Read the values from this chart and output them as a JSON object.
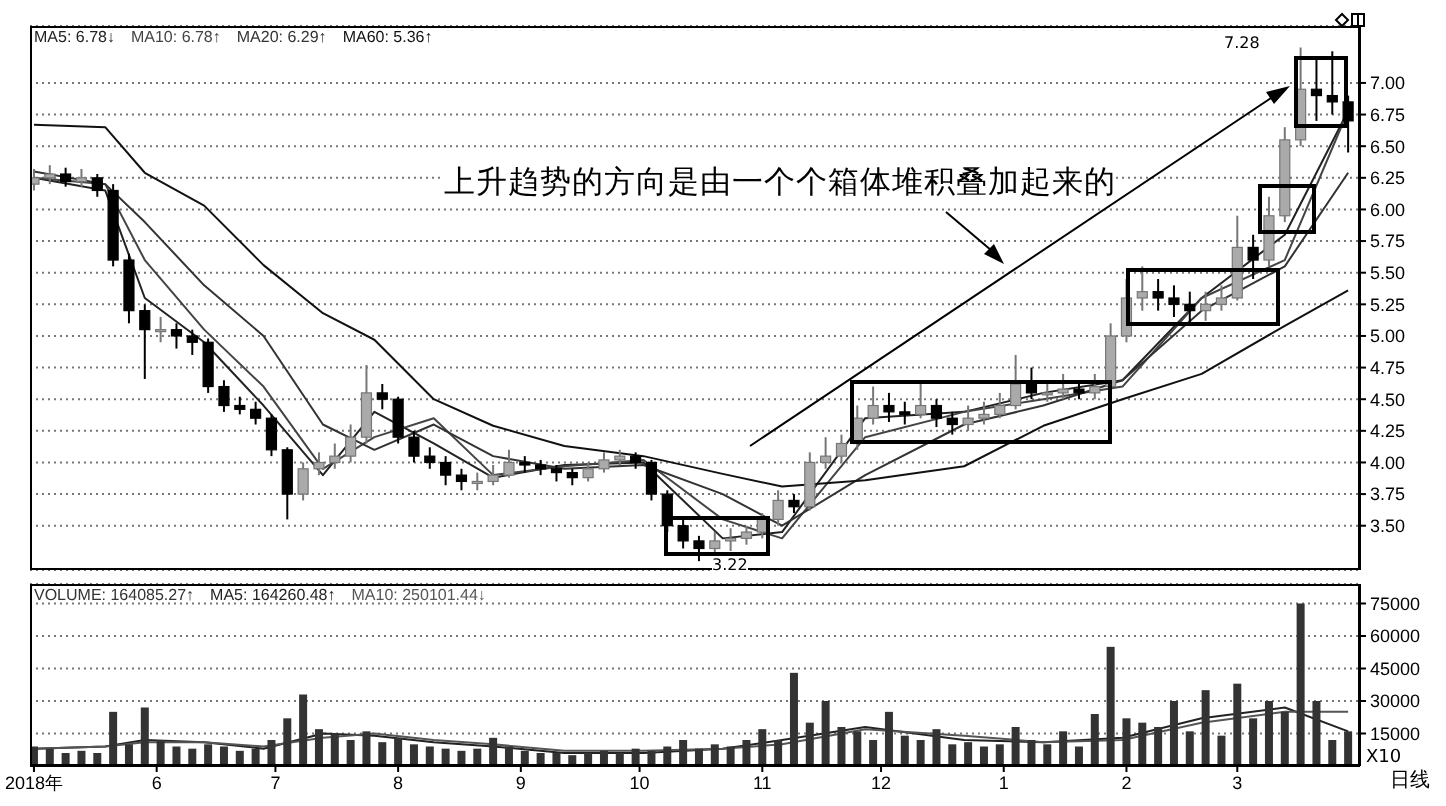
{
  "chart_data": [
    {
      "type": "candlestick",
      "legend": "top left",
      "grid": "y",
      "tick_labels": "y",
      "xlim": [
        "2018-04-30",
        "2019-04-01"
      ],
      "ylim": [
        3.15,
        7.45
      ],
      "yticks": [
        {
          "value": 3.5,
          "label": "3.50"
        },
        {
          "value": 3.75,
          "label": "3.75"
        },
        {
          "value": 4,
          "label": "4.00"
        },
        {
          "value": 4.25,
          "label": "4.25"
        },
        {
          "value": 4.5,
          "label": "4.50"
        },
        {
          "value": 4.75,
          "label": "4.75"
        },
        {
          "value": 5,
          "label": "5.00"
        },
        {
          "value": 5.25,
          "label": "5.25"
        },
        {
          "value": 5.5,
          "label": "5.50"
        },
        {
          "value": 5.75,
          "label": "5.75"
        },
        {
          "value": 6,
          "label": "6.00"
        },
        {
          "value": 6.25,
          "label": "6.25"
        },
        {
          "value": 6.5,
          "label": "6.50"
        },
        {
          "value": 6.75,
          "label": "6.75"
        },
        {
          "value": 7,
          "label": "7.00"
        }
      ],
      "x": [
        "2018-05-01",
        "2018-05-05",
        "2018-05-09",
        "2018-05-13",
        "2018-05-17",
        "2018-05-21",
        "2018-05-25",
        "2018-05-29",
        "2018-06-02",
        "2018-06-06",
        "2018-06-10",
        "2018-06-14",
        "2018-06-18",
        "2018-06-22",
        "2018-06-26",
        "2018-06-30",
        "2018-07-04",
        "2018-07-08",
        "2018-07-12",
        "2018-07-16",
        "2018-07-20",
        "2018-07-24",
        "2018-07-28",
        "2018-08-01",
        "2018-08-05",
        "2018-08-09",
        "2018-08-13",
        "2018-08-17",
        "2018-08-21",
        "2018-08-25",
        "2018-08-29",
        "2018-09-02",
        "2018-09-06",
        "2018-09-10",
        "2018-09-14",
        "2018-09-18",
        "2018-09-22",
        "2018-09-26",
        "2018-09-30",
        "2018-10-04",
        "2018-10-08",
        "2018-10-12",
        "2018-10-16",
        "2018-10-20",
        "2018-10-24",
        "2018-10-28",
        "2018-11-01",
        "2018-11-05",
        "2018-11-09",
        "2018-11-13",
        "2018-11-17",
        "2018-11-21",
        "2018-11-25",
        "2018-11-29",
        "2018-12-03",
        "2018-12-07",
        "2018-12-11",
        "2018-12-15",
        "2018-12-19",
        "2018-12-23",
        "2018-12-27",
        "2018-12-31",
        "2019-01-04",
        "2019-01-08",
        "2019-01-12",
        "2019-01-16",
        "2019-01-20",
        "2019-01-24",
        "2019-01-28",
        "2019-02-01",
        "2019-02-05",
        "2019-02-09",
        "2019-02-13",
        "2019-02-17",
        "2019-02-21",
        "2019-02-25",
        "2019-03-01",
        "2019-03-05",
        "2019-03-09",
        "2019-03-13",
        "2019-03-17",
        "2019-03-21",
        "2019-03-25",
        "2019-03-29"
      ],
      "ohlc": [
        [
          6.2,
          6.32,
          6.15,
          6.25
        ],
        [
          6.25,
          6.35,
          6.2,
          6.28
        ],
        [
          6.28,
          6.33,
          6.18,
          6.22
        ],
        [
          6.22,
          6.32,
          6.18,
          6.25
        ],
        [
          6.25,
          6.28,
          6.1,
          6.15
        ],
        [
          6.15,
          6.2,
          5.55,
          5.6
        ],
        [
          5.6,
          5.65,
          5.1,
          5.2
        ],
        [
          5.2,
          5.25,
          4.66,
          5.05
        ],
        [
          5.05,
          5.15,
          4.95,
          5.05
        ],
        [
          5.05,
          5.1,
          4.9,
          5.0
        ],
        [
          5.0,
          5.05,
          4.85,
          4.95
        ],
        [
          4.95,
          4.98,
          4.55,
          4.6
        ],
        [
          4.6,
          4.65,
          4.4,
          4.45
        ],
        [
          4.45,
          4.52,
          4.38,
          4.42
        ],
        [
          4.42,
          4.48,
          4.3,
          4.35
        ],
        [
          4.35,
          4.38,
          4.05,
          4.1
        ],
        [
          4.1,
          4.12,
          3.55,
          3.75
        ],
        [
          3.75,
          4.0,
          3.7,
          3.95
        ],
        [
          3.95,
          4.08,
          3.9,
          4.0
        ],
        [
          4.0,
          4.15,
          3.95,
          4.05
        ],
        [
          4.05,
          4.3,
          4.0,
          4.2
        ],
        [
          4.2,
          4.77,
          4.15,
          4.55
        ],
        [
          4.55,
          4.62,
          4.42,
          4.5
        ],
        [
          4.5,
          4.52,
          4.15,
          4.2
        ],
        [
          4.2,
          4.25,
          4.0,
          4.05
        ],
        [
          4.05,
          4.12,
          3.95,
          4.0
        ],
        [
          4.0,
          4.05,
          3.82,
          3.9
        ],
        [
          3.9,
          3.95,
          3.78,
          3.85
        ],
        [
          3.85,
          3.92,
          3.78,
          3.85
        ],
        [
          3.85,
          3.98,
          3.82,
          3.9
        ],
        [
          3.9,
          4.1,
          3.88,
          4.0
        ],
        [
          4.0,
          4.05,
          3.92,
          3.98
        ],
        [
          3.98,
          4.02,
          3.9,
          3.95
        ],
        [
          3.95,
          3.98,
          3.85,
          3.92
        ],
        [
          3.92,
          3.95,
          3.82,
          3.88
        ],
        [
          3.88,
          4.0,
          3.85,
          3.95
        ],
        [
          3.95,
          4.08,
          3.92,
          4.02
        ],
        [
          4.02,
          4.1,
          3.98,
          4.05
        ],
        [
          4.05,
          4.08,
          3.95,
          4.0
        ],
        [
          4.0,
          4.02,
          3.7,
          3.75
        ],
        [
          3.75,
          3.78,
          3.45,
          3.5
        ],
        [
          3.5,
          3.55,
          3.32,
          3.38
        ],
        [
          3.38,
          3.42,
          3.22,
          3.32
        ],
        [
          3.32,
          3.45,
          3.28,
          3.38
        ],
        [
          3.38,
          3.48,
          3.3,
          3.4
        ],
        [
          3.4,
          3.5,
          3.35,
          3.45
        ],
        [
          3.45,
          3.6,
          3.4,
          3.55
        ],
        [
          3.55,
          3.78,
          3.5,
          3.7
        ],
        [
          3.7,
          3.75,
          3.6,
          3.65
        ],
        [
          3.65,
          4.08,
          3.62,
          4.0
        ],
        [
          4.0,
          4.2,
          3.95,
          4.05
        ],
        [
          4.05,
          4.22,
          4.0,
          4.15
        ],
        [
          4.15,
          4.45,
          4.1,
          4.35
        ],
        [
          4.35,
          4.6,
          4.3,
          4.45
        ],
        [
          4.45,
          4.55,
          4.32,
          4.4
        ],
        [
          4.4,
          4.48,
          4.3,
          4.38
        ],
        [
          4.38,
          4.65,
          4.35,
          4.45
        ],
        [
          4.45,
          4.5,
          4.28,
          4.35
        ],
        [
          4.35,
          4.4,
          4.22,
          4.3
        ],
        [
          4.3,
          4.45,
          4.25,
          4.35
        ],
        [
          4.35,
          4.48,
          4.3,
          4.38
        ],
        [
          4.38,
          4.55,
          4.35,
          4.45
        ],
        [
          4.45,
          4.85,
          4.42,
          4.62
        ],
        [
          4.62,
          4.75,
          4.5,
          4.55
        ],
        [
          4.55,
          4.65,
          4.48,
          4.55
        ],
        [
          4.55,
          4.7,
          4.5,
          4.58
        ],
        [
          4.58,
          4.65,
          4.5,
          4.55
        ],
        [
          4.55,
          4.7,
          4.5,
          4.6
        ],
        [
          4.6,
          5.1,
          4.58,
          5.0
        ],
        [
          5.0,
          5.45,
          4.95,
          5.3
        ],
        [
          5.3,
          5.55,
          5.2,
          5.35
        ],
        [
          5.35,
          5.45,
          5.2,
          5.3
        ],
        [
          5.3,
          5.4,
          5.15,
          5.25
        ],
        [
          5.25,
          5.35,
          5.1,
          5.2
        ],
        [
          5.2,
          5.35,
          5.12,
          5.25
        ],
        [
          5.25,
          5.4,
          5.2,
          5.3
        ],
        [
          5.3,
          5.95,
          5.28,
          5.7
        ],
        [
          5.7,
          5.8,
          5.45,
          5.6
        ],
        [
          5.6,
          6.1,
          5.55,
          5.95
        ],
        [
          5.95,
          6.65,
          5.9,
          6.55
        ],
        [
          6.55,
          7.28,
          6.5,
          6.95
        ],
        [
          6.95,
          7.2,
          6.7,
          6.9
        ],
        [
          6.9,
          7.25,
          6.75,
          6.85
        ],
        [
          6.85,
          6.9,
          6.45,
          6.7
        ]
      ],
      "series": [
        {
          "name": "MA5: 6.78↓",
          "type": "line",
          "color": "#222222",
          "x": [
            "2018-05-01",
            "2018-05-19",
            "2018-05-29",
            "2018-06-13",
            "2018-06-28",
            "2018-07-13",
            "2018-07-26",
            "2018-08-10",
            "2018-08-25",
            "2018-09-12",
            "2018-10-02",
            "2018-10-22",
            "2018-11-06",
            "2018-11-27",
            "2018-12-22",
            "2019-01-11",
            "2019-01-31",
            "2019-02-20",
            "2019-03-13",
            "2019-03-29"
          ],
          "values": [
            6.25,
            6.15,
            5.3,
            4.95,
            4.45,
            3.9,
            4.4,
            4.15,
            3.88,
            3.98,
            4.0,
            3.4,
            3.45,
            4.35,
            4.4,
            4.55,
            4.65,
            5.3,
            5.8,
            6.78
          ]
        },
        {
          "name": "MA10: 6.78↑",
          "type": "line",
          "color": "#444444",
          "x": [
            "2018-05-01",
            "2018-05-19",
            "2018-05-29",
            "2018-06-13",
            "2018-06-28",
            "2018-07-13",
            "2018-07-26",
            "2018-08-10",
            "2018-08-25",
            "2018-09-12",
            "2018-10-02",
            "2018-10-22",
            "2018-11-06",
            "2018-11-27",
            "2018-12-22",
            "2019-01-11",
            "2019-01-31",
            "2019-02-20",
            "2019-03-13",
            "2019-03-29"
          ],
          "values": [
            6.25,
            6.2,
            5.6,
            5.05,
            4.6,
            3.95,
            4.2,
            4.35,
            3.9,
            3.97,
            4.02,
            3.55,
            3.4,
            4.2,
            4.4,
            4.5,
            4.6,
            5.3,
            5.6,
            6.78
          ]
        },
        {
          "name": "MA20: 6.29↑",
          "type": "line",
          "color": "#333333",
          "x": [
            "2018-05-01",
            "2018-05-19",
            "2018-05-29",
            "2018-06-13",
            "2018-06-28",
            "2018-07-13",
            "2018-07-26",
            "2018-08-10",
            "2018-08-25",
            "2018-09-12",
            "2018-10-02",
            "2018-10-22",
            "2018-11-06",
            "2018-11-27",
            "2018-12-22",
            "2019-01-11",
            "2019-01-31",
            "2019-02-20",
            "2019-03-13",
            "2019-03-29"
          ],
          "values": [
            6.3,
            6.2,
            5.9,
            5.4,
            5.0,
            4.3,
            4.1,
            4.3,
            4.05,
            3.95,
            3.98,
            3.75,
            3.5,
            3.9,
            4.3,
            4.45,
            4.65,
            5.2,
            5.55,
            6.29
          ]
        },
        {
          "name": "MA60: 5.36↑",
          "type": "line",
          "color": "#111111",
          "x": [
            "2018-05-01",
            "2018-05-19",
            "2018-05-29",
            "2018-06-13",
            "2018-06-28",
            "2018-07-13",
            "2018-07-26",
            "2018-08-10",
            "2018-08-25",
            "2018-09-12",
            "2018-10-02",
            "2018-10-22",
            "2018-11-06",
            "2018-11-27",
            "2018-12-22",
            "2019-01-11",
            "2019-01-31",
            "2019-02-20",
            "2019-03-13",
            "2019-03-29"
          ],
          "values": [
            6.67,
            6.65,
            6.29,
            6.03,
            5.56,
            5.18,
            4.97,
            4.5,
            4.29,
            4.13,
            4.05,
            3.91,
            3.81,
            3.86,
            3.97,
            4.29,
            4.5,
            4.7,
            5.08,
            5.36
          ]
        }
      ],
      "annotations": [
        "上升趋势的方向是由一个个箱体堆积叠加起来的",
        "7.28",
        "3.22"
      ]
    },
    {
      "type": "bar",
      "legend": "top left",
      "grid": "y",
      "xlim": [
        "2018-04-30",
        "2019-04-01"
      ],
      "ylim": [
        0,
        84000
      ],
      "yticks": [
        15000,
        30000,
        45000,
        60000,
        75000
      ],
      "xticks": [
        {
          "value": "2018-05-01",
          "label": "2018年"
        },
        {
          "value": "2018-06-01",
          "label": "6"
        },
        {
          "value": "2018-07-01",
          "label": "7"
        },
        {
          "value": "2018-08-01",
          "label": "8"
        },
        {
          "value": "2018-09-01",
          "label": "9"
        },
        {
          "value": "2018-10-01",
          "label": "10"
        },
        {
          "value": "2018-11-01",
          "label": "11"
        },
        {
          "value": "2018-12-01",
          "label": "12"
        },
        {
          "value": "2019-01-01",
          "label": "1"
        },
        {
          "value": "2019-02-01",
          "label": "2"
        },
        {
          "value": "2019-03-01",
          "label": "3"
        }
      ],
      "x": [
        "2018-05-01",
        "2018-05-05",
        "2018-05-09",
        "2018-05-13",
        "2018-05-17",
        "2018-05-21",
        "2018-05-25",
        "2018-05-29",
        "2018-06-02",
        "2018-06-06",
        "2018-06-10",
        "2018-06-14",
        "2018-06-18",
        "2018-06-22",
        "2018-06-26",
        "2018-06-30",
        "2018-07-04",
        "2018-07-08",
        "2018-07-12",
        "2018-07-16",
        "2018-07-20",
        "2018-07-24",
        "2018-07-28",
        "2018-08-01",
        "2018-08-05",
        "2018-08-09",
        "2018-08-13",
        "2018-08-17",
        "2018-08-21",
        "2018-08-25",
        "2018-08-29",
        "2018-09-02",
        "2018-09-06",
        "2018-09-10",
        "2018-09-14",
        "2018-09-18",
        "2018-09-22",
        "2018-09-26",
        "2018-09-30",
        "2018-10-04",
        "2018-10-08",
        "2018-10-12",
        "2018-10-16",
        "2018-10-20",
        "2018-10-24",
        "2018-10-28",
        "2018-11-01",
        "2018-11-05",
        "2018-11-09",
        "2018-11-13",
        "2018-11-17",
        "2018-11-21",
        "2018-11-25",
        "2018-11-29",
        "2018-12-03",
        "2018-12-07",
        "2018-12-11",
        "2018-12-15",
        "2018-12-19",
        "2018-12-23",
        "2018-12-27",
        "2018-12-31",
        "2019-01-04",
        "2019-01-08",
        "2019-01-12",
        "2019-01-16",
        "2019-01-20",
        "2019-01-24",
        "2019-01-28",
        "2019-02-01",
        "2019-02-05",
        "2019-02-09",
        "2019-02-13",
        "2019-02-17",
        "2019-02-21",
        "2019-02-25",
        "2019-03-01",
        "2019-03-05",
        "2019-03-09",
        "2019-03-13",
        "2019-03-17",
        "2019-03-21",
        "2019-03-25",
        "2019-03-29"
      ],
      "series": [
        {
          "name": "VOLUME: 164085.27↑",
          "type": "bar",
          "color": "#333333",
          "values": [
            9000,
            8000,
            6000,
            7000,
            6000,
            25000,
            10000,
            27000,
            12000,
            9000,
            8000,
            10000,
            9000,
            7000,
            8000,
            12000,
            22000,
            33000,
            17000,
            15000,
            12000,
            16000,
            11000,
            13000,
            10000,
            9000,
            8000,
            7000,
            8000,
            13000,
            9000,
            7000,
            6000,
            6000,
            5000,
            6000,
            7000,
            6000,
            8000,
            7000,
            9000,
            12000,
            8000,
            10000,
            9000,
            12000,
            17000,
            12000,
            43000,
            20000,
            30000,
            18000,
            16000,
            12000,
            25000,
            14000,
            12000,
            17000,
            10000,
            11000,
            9000,
            10000,
            18000,
            12000,
            10000,
            16000,
            9000,
            24000,
            55000,
            22000,
            20000,
            18000,
            30000,
            16000,
            35000,
            14000,
            38000,
            22000,
            30000,
            25000,
            75000,
            30000,
            12000,
            16000
          ]
        },
        {
          "name": "MA5: 164260.48↑",
          "type": "line",
          "color": "#222222",
          "x": [
            "2018-05-01",
            "2018-05-19",
            "2018-05-29",
            "2018-06-13",
            "2018-06-28",
            "2018-07-13",
            "2018-07-26",
            "2018-08-10",
            "2018-08-25",
            "2018-09-12",
            "2018-10-02",
            "2018-10-22",
            "2018-11-06",
            "2018-11-27",
            "2018-12-22",
            "2019-01-11",
            "2019-01-31",
            "2019-02-20",
            "2019-03-13",
            "2019-03-29"
          ],
          "values": [
            8000,
            9000,
            12000,
            11000,
            8000,
            15000,
            14000,
            11000,
            9000,
            6000,
            6000,
            8000,
            12000,
            18000,
            12000,
            11000,
            13000,
            22000,
            27000,
            16000
          ]
        },
        {
          "name": "MA10: 250101.44↓",
          "type": "line",
          "color": "#555555",
          "x": [
            "2018-05-01",
            "2018-05-19",
            "2018-05-29",
            "2018-06-13",
            "2018-06-28",
            "2018-07-13",
            "2018-07-26",
            "2018-08-10",
            "2018-08-25",
            "2018-09-12",
            "2018-10-02",
            "2018-10-22",
            "2018-11-06",
            "2018-11-27",
            "2018-12-22",
            "2019-01-11",
            "2019-01-31",
            "2019-02-20",
            "2019-03-13",
            "2019-03-29"
          ],
          "values": [
            8000,
            9000,
            11000,
            11000,
            9000,
            13000,
            15000,
            12000,
            10000,
            7000,
            7000,
            8000,
            10000,
            17000,
            14000,
            11000,
            12000,
            20000,
            25000,
            25000
          ]
        }
      ],
      "annotations": [
        "X10",
        "日线"
      ]
    }
  ]
}
